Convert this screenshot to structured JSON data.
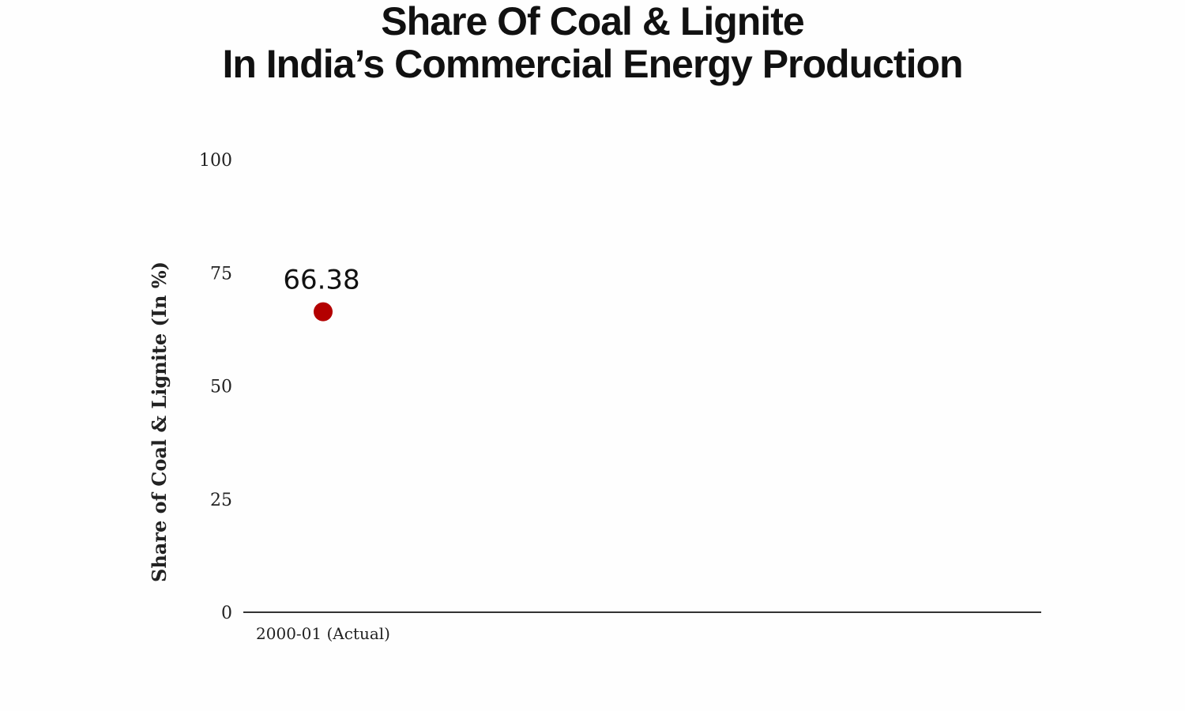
{
  "chart_data": {
    "type": "scatter",
    "title_lines": [
      "Share Of Coal & Lignite",
      "In India’s Commercial Energy Production"
    ],
    "ylabel": "Share of Coal & Lignite (In %)",
    "xlabel": "",
    "ylim": [
      0,
      100
    ],
    "yticks": [
      "0",
      "25",
      "50",
      "75",
      "100"
    ],
    "grid": false,
    "categories": [
      "2000-01 (Actual)"
    ],
    "series": [
      {
        "values": [
          66.38
        ],
        "data_labels": [
          "66.38"
        ],
        "color": "#b30000"
      }
    ]
  }
}
